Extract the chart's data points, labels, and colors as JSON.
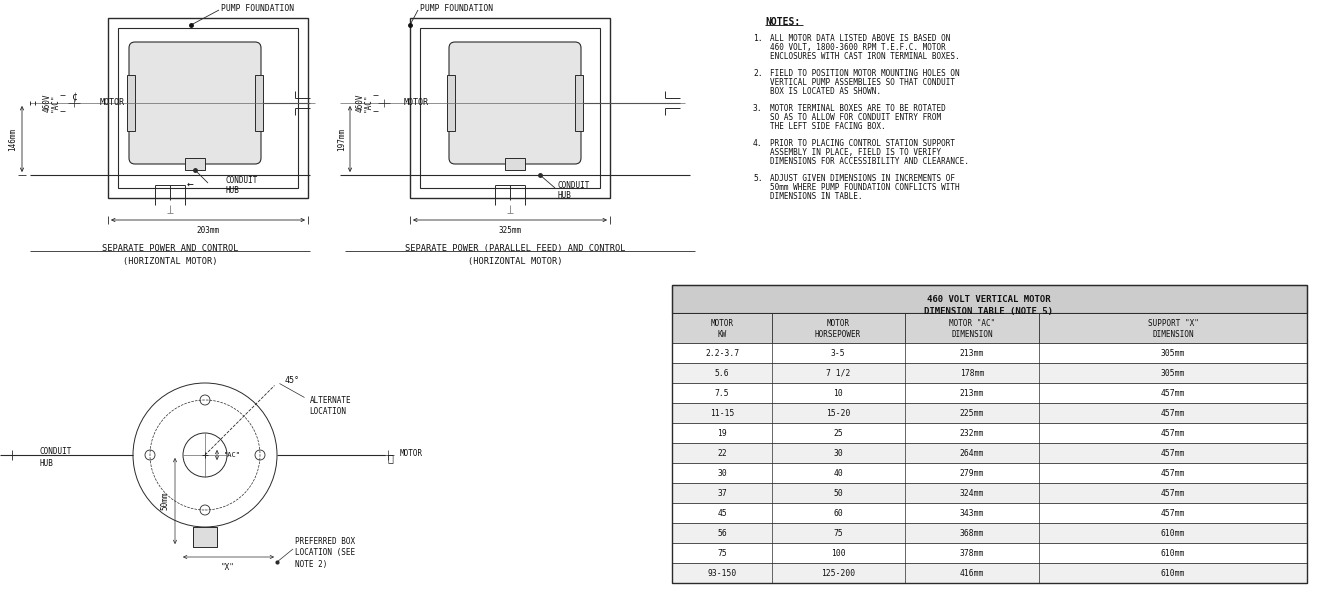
{
  "line_color": "#2a2a2a",
  "dim_color": "#2a2a2a",
  "notes_title": "NOTES:",
  "notes": [
    [
      "ALL MOTOR DATA LISTED ABOVE IS BASED ON",
      "460 VOLT, 1800-3600 RPM T.E.F.C. MOTOR",
      "ENCLOSURES WITH CAST IRON TERMINAL BOXES."
    ],
    [
      "FIELD TO POSITION MOTOR MOUNTING HOLES ON",
      "VERTICAL PUMP ASSEMBLIES SO THAT CONDUIT",
      "BOX IS LOCATED AS SHOWN."
    ],
    [
      "MOTOR TERMINAL BOXES ARE TO BE ROTATED",
      "SO AS TO ALLOW FOR CONDUIT ENTRY FROM",
      "THE LEFT SIDE FACING BOX."
    ],
    [
      "PRIOR TO PLACING CONTROL STATION SUPPORT",
      "ASSEMBLY IN PLACE, FIELD IS TO VERIFY",
      "DIMENSIONS FOR ACCESSIBILITY AND CLEARANCE."
    ],
    [
      "ADJUST GIVEN DIMENSIONS IN INCREMENTS OF",
      "50mm WHERE PUMP FOUNDATION CONFLICTS WITH",
      "DIMENSIONS IN TABLE."
    ]
  ],
  "table_title1": "460 VOLT VERTICAL MOTOR",
  "table_title2": "DIMENSION TABLE (NOTE 5)",
  "col_headers": [
    "MOTOR\nKW",
    "MOTOR\nHORSEPOWER",
    "MOTOR \"AC\"\nDIMENSION",
    "SUPPORT \"X\"\nDIMENSION"
  ],
  "table_rows": [
    [
      "2.2-3.7",
      "3-5",
      "213mm",
      "305mm"
    ],
    [
      "5.6",
      "7 1/2",
      "178mm",
      "305mm"
    ],
    [
      "7.5",
      "10",
      "213mm",
      "457mm"
    ],
    [
      "11-15",
      "15-20",
      "225mm",
      "457mm"
    ],
    [
      "19",
      "25",
      "232mm",
      "457mm"
    ],
    [
      "22",
      "30",
      "264mm",
      "457mm"
    ],
    [
      "30",
      "40",
      "279mm",
      "457mm"
    ],
    [
      "37",
      "50",
      "324mm",
      "457mm"
    ],
    [
      "45",
      "60",
      "343mm",
      "457mm"
    ],
    [
      "56",
      "75",
      "368mm",
      "610mm"
    ],
    [
      "75",
      "100",
      "378mm",
      "610mm"
    ],
    [
      "93-150",
      "125-200",
      "416mm",
      "610mm"
    ]
  ],
  "label1": "SEPARATE POWER AND CONTROL",
  "label1b": "(HORIZONTAL MOTOR)",
  "label2": "SEPARATE POWER (PARALLEL FEED) AND CONTROL",
  "label2b": "(HORIZONTAL MOTOR)"
}
